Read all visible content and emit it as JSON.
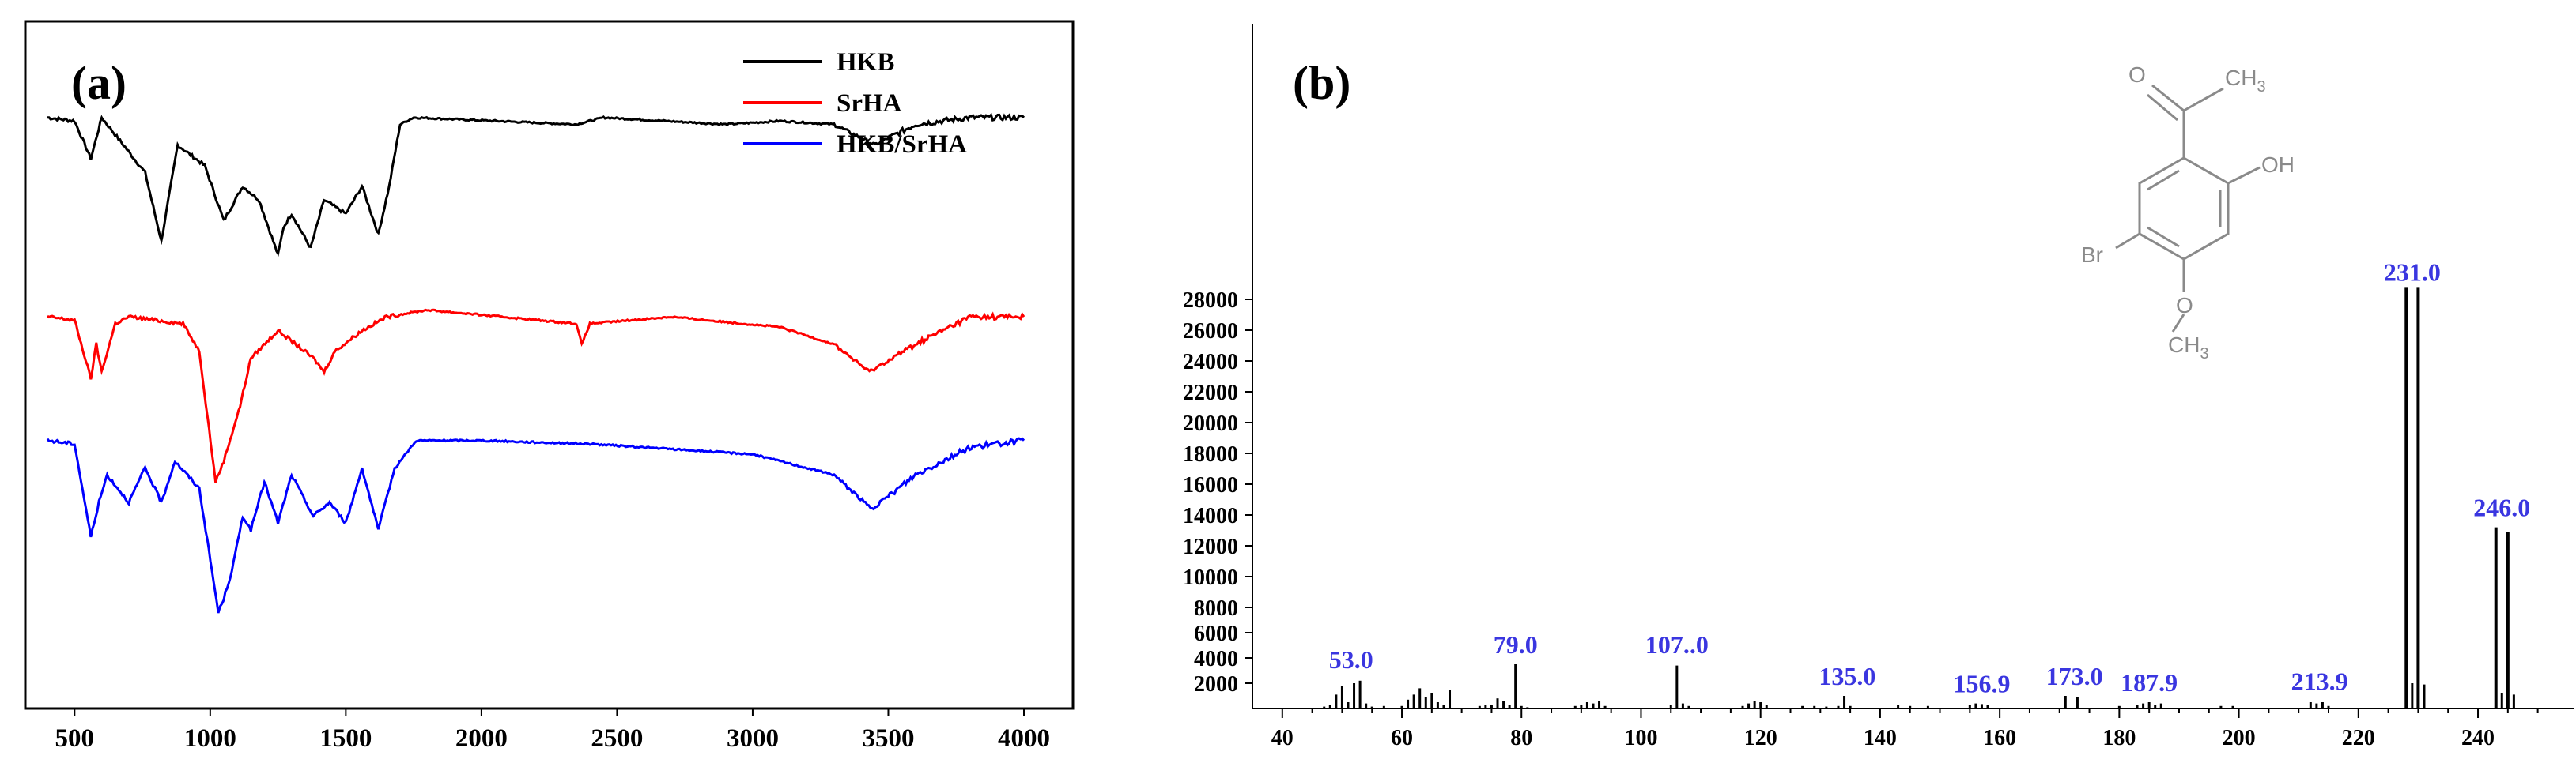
{
  "chart_data": [
    {
      "panel": "(a)",
      "type": "line",
      "title": "",
      "xlabel": "",
      "ylabel": "",
      "xlim": [
        400,
        4000
      ],
      "ylim": [
        0,
        10
      ],
      "x_ticks": [
        "500",
        "1000",
        "1500",
        "2000",
        "2500",
        "3000",
        "3500",
        "4000"
      ],
      "legend": {
        "position": "top-right"
      },
      "series": [
        {
          "name": "HKB",
          "color": "#000000",
          "baseline": 8.6,
          "x": [
            400,
            500,
            560,
            600,
            680,
            760,
            820,
            880,
            980,
            1050,
            1120,
            1180,
            1250,
            1270,
            1300,
            1370,
            1420,
            1500,
            1560,
            1620,
            1660,
            1700,
            1750,
            2350,
            2450,
            2900,
            3100,
            3300,
            3450,
            3600,
            3800,
            4000
          ],
          "y": [
            8.6,
            8.55,
            8.0,
            8.6,
            8.2,
            7.8,
            6.8,
            8.2,
            7.9,
            7.1,
            7.6,
            7.4,
            6.6,
            7.0,
            7.2,
            6.7,
            7.4,
            7.2,
            7.6,
            6.9,
            7.6,
            8.5,
            8.6,
            8.5,
            8.6,
            8.5,
            8.55,
            8.5,
            8.2,
            8.5,
            8.6,
            8.6
          ]
        },
        {
          "name": "SrHA",
          "color": "#ff0000",
          "baseline": 5.7,
          "x": [
            400,
            500,
            560,
            580,
            600,
            650,
            700,
            900,
            960,
            1020,
            1050,
            1080,
            1110,
            1150,
            1250,
            1380,
            1420,
            1460,
            1560,
            1650,
            1800,
            2350,
            2370,
            2400,
            2700,
            3100,
            3300,
            3430,
            3600,
            3800,
            4000
          ],
          "y": [
            5.7,
            5.65,
            4.8,
            5.3,
            4.9,
            5.6,
            5.7,
            5.6,
            5.2,
            3.3,
            3.6,
            4.0,
            4.4,
            5.1,
            5.5,
            5.1,
            4.9,
            5.2,
            5.5,
            5.7,
            5.8,
            5.6,
            5.3,
            5.6,
            5.7,
            5.55,
            5.3,
            4.9,
            5.3,
            5.7,
            5.7
          ]
        },
        {
          "name": "HKB/SrHA",
          "color": "#0000ff",
          "baseline": 3.9,
          "x": [
            400,
            500,
            560,
            590,
            620,
            700,
            760,
            820,
            870,
            960,
            1030,
            1050,
            1080,
            1120,
            1150,
            1200,
            1250,
            1300,
            1380,
            1440,
            1500,
            1560,
            1620,
            1680,
            1760,
            2000,
            2400,
            3000,
            3300,
            3440,
            3600,
            3800,
            4000
          ],
          "y": [
            3.9,
            3.85,
            2.5,
            3.0,
            3.4,
            3.0,
            3.5,
            3.0,
            3.6,
            3.2,
            1.4,
            1.6,
            2.0,
            2.8,
            2.6,
            3.3,
            2.7,
            3.4,
            2.8,
            3.0,
            2.7,
            3.5,
            2.6,
            3.5,
            3.9,
            3.9,
            3.85,
            3.7,
            3.4,
            2.9,
            3.4,
            3.8,
            3.9
          ]
        }
      ]
    },
    {
      "panel": "(b)",
      "type": "bar",
      "title": "",
      "xlabel": "",
      "ylabel": "",
      "xlim": [
        35,
        256
      ],
      "x_ticks": [
        40,
        60,
        80,
        100,
        120,
        140,
        160,
        180,
        200,
        220,
        240
      ],
      "y_ticks": [
        2000,
        4000,
        6000,
        8000,
        10000,
        12000,
        14000,
        16000,
        18000,
        20000,
        22000,
        24000,
        26000,
        28000
      ],
      "y_scale": "piecewise: 0-8000 compressed 16px/1000, 8000-28000 at 19.5px/1000",
      "peak_labels": [
        {
          "text": "53.0",
          "x": 51.5,
          "y": 2300
        },
        {
          "text": "79.0",
          "x": 79.0,
          "y": 3500
        },
        {
          "text": "107..0",
          "x": 106.0,
          "y": 3500
        },
        {
          "text": "135.0",
          "x": 134.5,
          "y": 1000
        },
        {
          "text": "156.9",
          "x": 157.0,
          "y": 400
        },
        {
          "text": "173.0",
          "x": 172.5,
          "y": 1000
        },
        {
          "text": "187.9",
          "x": 185.0,
          "y": 500
        },
        {
          "text": "213.9",
          "x": 213.5,
          "y": 600
        },
        {
          "text": "231.0",
          "x": 229.0,
          "y": 28500
        },
        {
          "text": "246.0",
          "x": 244.0,
          "y": 13200
        }
      ],
      "peaks": [
        {
          "x": 47,
          "y": 150
        },
        {
          "x": 48,
          "y": 250
        },
        {
          "x": 49,
          "y": 1100
        },
        {
          "x": 50,
          "y": 1800
        },
        {
          "x": 51,
          "y": 500
        },
        {
          "x": 52,
          "y": 2000
        },
        {
          "x": 53,
          "y": 2200
        },
        {
          "x": 54,
          "y": 400
        },
        {
          "x": 55,
          "y": 150
        },
        {
          "x": 57,
          "y": 200
        },
        {
          "x": 60,
          "y": 200
        },
        {
          "x": 61,
          "y": 700
        },
        {
          "x": 62,
          "y": 1100
        },
        {
          "x": 63,
          "y": 1600
        },
        {
          "x": 64,
          "y": 900
        },
        {
          "x": 65,
          "y": 1200
        },
        {
          "x": 66,
          "y": 500
        },
        {
          "x": 67,
          "y": 300
        },
        {
          "x": 68,
          "y": 1500
        },
        {
          "x": 73,
          "y": 200
        },
        {
          "x": 74,
          "y": 300
        },
        {
          "x": 75,
          "y": 300
        },
        {
          "x": 76,
          "y": 800
        },
        {
          "x": 77,
          "y": 600
        },
        {
          "x": 78,
          "y": 300
        },
        {
          "x": 79,
          "y": 3500
        },
        {
          "x": 80,
          "y": 200
        },
        {
          "x": 81,
          "y": 100
        },
        {
          "x": 89,
          "y": 200
        },
        {
          "x": 90,
          "y": 300
        },
        {
          "x": 91,
          "y": 500
        },
        {
          "x": 92,
          "y": 400
        },
        {
          "x": 93,
          "y": 600
        },
        {
          "x": 94,
          "y": 200
        },
        {
          "x": 105,
          "y": 300
        },
        {
          "x": 106,
          "y": 3400
        },
        {
          "x": 107,
          "y": 400
        },
        {
          "x": 108,
          "y": 200
        },
        {
          "x": 117,
          "y": 200
        },
        {
          "x": 118,
          "y": 400
        },
        {
          "x": 119,
          "y": 600
        },
        {
          "x": 120,
          "y": 500
        },
        {
          "x": 121,
          "y": 300
        },
        {
          "x": 127,
          "y": 200
        },
        {
          "x": 129,
          "y": 200
        },
        {
          "x": 131,
          "y": 150
        },
        {
          "x": 133,
          "y": 200
        },
        {
          "x": 134,
          "y": 1000
        },
        {
          "x": 135,
          "y": 200
        },
        {
          "x": 143,
          "y": 300
        },
        {
          "x": 145,
          "y": 200
        },
        {
          "x": 148,
          "y": 200
        },
        {
          "x": 155,
          "y": 300
        },
        {
          "x": 156,
          "y": 400
        },
        {
          "x": 157,
          "y": 350
        },
        {
          "x": 158,
          "y": 300
        },
        {
          "x": 171,
          "y": 1000
        },
        {
          "x": 173,
          "y": 900
        },
        {
          "x": 180,
          "y": 200
        },
        {
          "x": 183,
          "y": 300
        },
        {
          "x": 184,
          "y": 400
        },
        {
          "x": 185,
          "y": 500
        },
        {
          "x": 186,
          "y": 300
        },
        {
          "x": 187,
          "y": 400
        },
        {
          "x": 197,
          "y": 200
        },
        {
          "x": 199,
          "y": 200
        },
        {
          "x": 212,
          "y": 500
        },
        {
          "x": 213,
          "y": 400
        },
        {
          "x": 214,
          "y": 500
        },
        {
          "x": 215,
          "y": 200
        },
        {
          "x": 228,
          "y": 28800
        },
        {
          "x": 229,
          "y": 2000
        },
        {
          "x": 230,
          "y": 28800
        },
        {
          "x": 231,
          "y": 1900
        },
        {
          "x": 243,
          "y": 13200
        },
        {
          "x": 244,
          "y": 1200
        },
        {
          "x": 245,
          "y": 12900
        },
        {
          "x": 246,
          "y": 1100
        }
      ],
      "structure_labels": {
        "o": "O",
        "ch3_top": "CH",
        "ch3_top_sub": "3",
        "oh": "OH",
        "br": "Br",
        "o_methoxy": "O",
        "ch3_bottom": "CH",
        "ch3_bottom_sub": "3"
      }
    }
  ]
}
